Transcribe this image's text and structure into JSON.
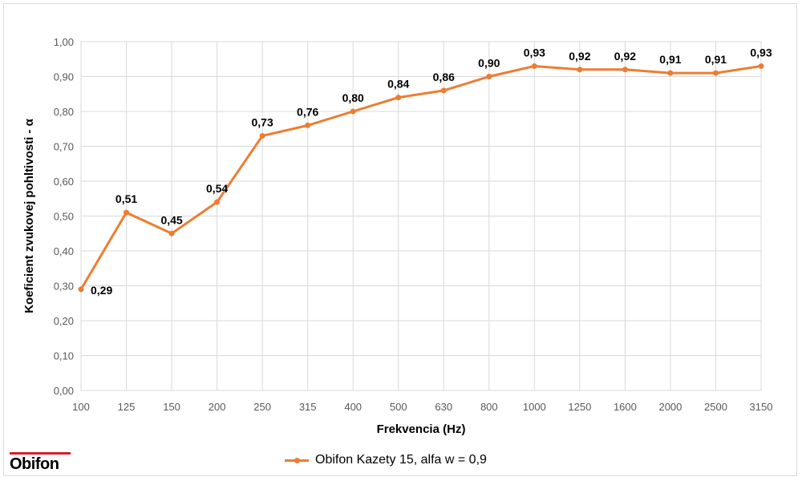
{
  "chart_data": {
    "type": "line",
    "categories": [
      "100",
      "125",
      "150",
      "200",
      "250",
      "315",
      "400",
      "500",
      "630",
      "800",
      "1000",
      "1250",
      "1600",
      "2000",
      "2500",
      "3150"
    ],
    "series": [
      {
        "name": "Obifon Kazety 15, alfa w = 0,9",
        "values": [
          0.29,
          0.51,
          0.45,
          0.54,
          0.73,
          0.76,
          0.8,
          0.84,
          0.86,
          0.9,
          0.93,
          0.92,
          0.92,
          0.91,
          0.91,
          0.93
        ],
        "labels": [
          "0,29",
          "0,51",
          "0,45",
          "0,54",
          "0,73",
          "0,76",
          "0,80",
          "0,84",
          "0,86",
          "0,90",
          "0,93",
          "0,92",
          "0,92",
          "0,91",
          "0,91",
          "0,93"
        ],
        "color": "#ed7d31"
      }
    ],
    "xlabel": "Frekvencia (Hz)",
    "ylabel": "Koeficient zvukovej pohltivosti - α",
    "ylim": [
      0,
      1
    ],
    "yticks": [
      0,
      0.1,
      0.2,
      0.3,
      0.4,
      0.5,
      0.6,
      0.7,
      0.8,
      0.9,
      1.0
    ],
    "ytick_labels": [
      "0,00",
      "0,10",
      "0,20",
      "0,30",
      "0,40",
      "0,50",
      "0,60",
      "0,70",
      "0,80",
      "0,90",
      "1,00"
    ],
    "grid": true,
    "legend_position": "bottom"
  },
  "logo": {
    "text": "Obifon",
    "accent_color": "#d32027"
  }
}
